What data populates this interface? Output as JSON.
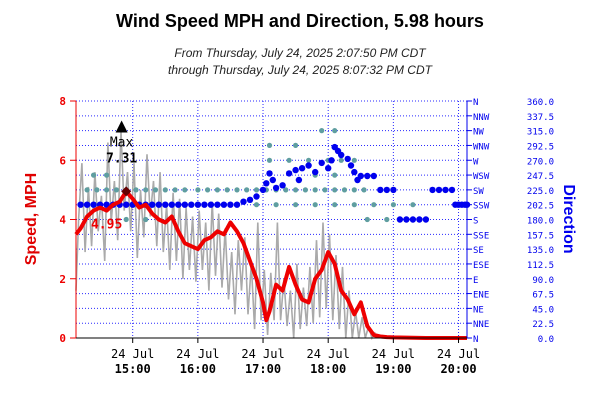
{
  "chart_data": {
    "type": "line",
    "title": "Wind Speed MPH and Direction, 5.98 hours",
    "subtitle_from": "From Thursday, July 24, 2025 2:07:50 PM CDT",
    "subtitle_through": "through Thursday, July 24, 2025 8:07:32 PM CDT",
    "ylabel_left": "Speed, MPH",
    "ylabel_right": "Direction",
    "x_range": [
      14.13,
      20.13
    ],
    "ylim_left": [
      0,
      8
    ],
    "ylim_right": [
      0,
      360
    ],
    "left_ticks": [
      "0",
      "2",
      "4",
      "6",
      "8"
    ],
    "right_ticks": [
      {
        "label": "N",
        "value": "0.0"
      },
      {
        "label": "NNE",
        "value": "22.5"
      },
      {
        "label": "NE",
        "value": "45.0"
      },
      {
        "label": "ENE",
        "value": "67.5"
      },
      {
        "label": "E",
        "value": "90.0"
      },
      {
        "label": "ESE",
        "value": "112.5"
      },
      {
        "label": "SE",
        "value": "135.0"
      },
      {
        "label": "SSE",
        "value": "157.5"
      },
      {
        "label": "S",
        "value": "180.0"
      },
      {
        "label": "SSW",
        "value": "202.5"
      },
      {
        "label": "SW",
        "value": "225.0"
      },
      {
        "label": "WSW",
        "value": "247.5"
      },
      {
        "label": "W",
        "value": "270.0"
      },
      {
        "label": "WNW",
        "value": "292.5"
      },
      {
        "label": "NW",
        "value": "315.0"
      },
      {
        "label": "NNW",
        "value": "337.5"
      },
      {
        "label": "N",
        "value": "360.0"
      }
    ],
    "x_ticks": [
      {
        "date": "24 Jul",
        "time": "15:00"
      },
      {
        "date": "24 Jul",
        "time": "16:00"
      },
      {
        "date": "24 Jul",
        "time": "17:00"
      },
      {
        "date": "24 Jul",
        "time": "18:00"
      },
      {
        "date": "24 Jul",
        "time": "19:00"
      },
      {
        "date": "24 Jul",
        "time": "20:00"
      }
    ],
    "x_tick_hours": [
      15,
      16,
      17,
      18,
      19,
      20
    ],
    "max_label": "Max",
    "max_value": "7.31",
    "max_hour": 14.83,
    "last_value_label": "4.95",
    "series": [
      {
        "color": "#ee0000",
        "x": [
          14.13,
          14.2,
          14.3,
          14.4,
          14.5,
          14.6,
          14.7,
          14.8,
          14.9,
          15.0,
          15.1,
          15.2,
          15.3,
          15.4,
          15.5,
          15.6,
          15.7,
          15.8,
          15.9,
          16.0,
          16.1,
          16.2,
          16.3,
          16.4,
          16.5,
          16.6,
          16.7,
          16.8,
          16.9,
          17.0,
          17.05,
          17.1,
          17.2,
          17.3,
          17.4,
          17.5,
          17.6,
          17.7,
          17.8,
          17.9,
          18.0,
          18.1,
          18.2,
          18.3,
          18.4,
          18.5,
          18.6,
          18.7,
          18.8,
          18.9,
          19.0,
          19.5,
          20.13
        ],
        "y": [
          3.5,
          3.7,
          4.1,
          4.3,
          4.4,
          4.3,
          4.5,
          4.6,
          4.95,
          4.7,
          4.4,
          4.5,
          4.2,
          4.0,
          3.9,
          4.1,
          3.6,
          3.2,
          3.1,
          3.0,
          3.3,
          3.4,
          3.6,
          3.5,
          3.9,
          3.6,
          3.2,
          2.6,
          2.0,
          1.2,
          0.6,
          0.9,
          1.8,
          1.6,
          2.4,
          1.8,
          1.3,
          1.2,
          2.0,
          2.3,
          2.9,
          2.5,
          1.6,
          1.3,
          0.8,
          1.2,
          0.4,
          0.1,
          0.05,
          0.03,
          0.02,
          0.0,
          0.0
        ]
      },
      {
        "color": "#aaaaaa",
        "x": [
          14.13,
          14.17,
          14.22,
          14.27,
          14.32,
          14.37,
          14.42,
          14.47,
          14.52,
          14.57,
          14.62,
          14.67,
          14.72,
          14.77,
          14.82,
          14.87,
          14.92,
          14.97,
          15.02,
          15.07,
          15.12,
          15.17,
          15.22,
          15.27,
          15.32,
          15.37,
          15.42,
          15.47,
          15.52,
          15.57,
          15.62,
          15.67,
          15.72,
          15.77,
          15.82,
          15.87,
          15.92,
          15.97,
          16.02,
          16.07,
          16.12,
          16.17,
          16.22,
          16.27,
          16.32,
          16.37,
          16.42,
          16.47,
          16.52,
          16.57,
          16.62,
          16.67,
          16.72,
          16.77,
          16.82,
          16.87,
          16.92,
          16.97,
          17.02,
          17.07,
          17.12,
          17.17,
          17.22,
          17.27,
          17.32,
          17.37,
          17.42,
          17.47,
          17.52,
          17.57,
          17.62,
          17.67,
          17.72,
          17.77,
          17.82,
          17.87,
          17.92,
          17.97,
          18.02,
          18.07,
          18.12,
          18.17,
          18.22,
          18.27,
          18.32,
          18.37,
          18.42,
          18.47,
          18.52,
          18.57,
          18.62,
          18.67,
          18.72
        ],
        "y": [
          1.6,
          4.0,
          5.9,
          2.9,
          5.1,
          3.1,
          5.6,
          3.6,
          4.8,
          2.6,
          6.6,
          3.9,
          5.3,
          3.3,
          7.0,
          4.3,
          5.6,
          3.6,
          5.9,
          2.7,
          5.0,
          3.4,
          6.2,
          4.1,
          5.3,
          3.1,
          5.6,
          2.9,
          4.5,
          2.3,
          4.9,
          2.6,
          4.7,
          2.0,
          4.4,
          2.3,
          4.1,
          1.9,
          4.3,
          2.3,
          3.9,
          1.6,
          4.6,
          2.1,
          4.2,
          1.7,
          3.7,
          1.3,
          2.9,
          0.8,
          3.3,
          1.6,
          3.4,
          0.8,
          2.5,
          0.3,
          3.9,
          0.6,
          2.3,
          0.1,
          2.2,
          0.6,
          3.9,
          0.6,
          2.0,
          0.4,
          1.6,
          0.0,
          2.5,
          0.3,
          1.7,
          0.4,
          2.4,
          0.5,
          3.3,
          0.7,
          3.9,
          1.0,
          3.5,
          0.6,
          2.8,
          0.3,
          2.4,
          0.0,
          1.6,
          0.0,
          0.9,
          0.0,
          0.7,
          0.0,
          0.4,
          0.0,
          0.2
        ]
      }
    ],
    "direction_points": [
      [
        14.2,
        202.5
      ],
      [
        14.3,
        202.5
      ],
      [
        14.4,
        202.5
      ],
      [
        14.5,
        202.5
      ],
      [
        14.6,
        202.5
      ],
      [
        14.7,
        202.5
      ],
      [
        14.8,
        202.5
      ],
      [
        14.9,
        202.5
      ],
      [
        15.0,
        202.5
      ],
      [
        15.1,
        202.5
      ],
      [
        15.2,
        202.5
      ],
      [
        15.3,
        202.5
      ],
      [
        15.4,
        202.5
      ],
      [
        15.5,
        202.5
      ],
      [
        15.6,
        202.5
      ],
      [
        15.7,
        202.5
      ],
      [
        15.8,
        202.5
      ],
      [
        15.9,
        202.5
      ],
      [
        16.0,
        202.5
      ],
      [
        16.1,
        202.5
      ],
      [
        16.2,
        202.5
      ],
      [
        16.3,
        202.5
      ],
      [
        16.4,
        202.5
      ],
      [
        16.5,
        202.5
      ],
      [
        16.6,
        202.5
      ],
      [
        16.7,
        207
      ],
      [
        16.8,
        210
      ],
      [
        16.9,
        215
      ],
      [
        17.0,
        225
      ],
      [
        17.05,
        235
      ],
      [
        17.1,
        250
      ],
      [
        17.15,
        240
      ],
      [
        17.2,
        228
      ],
      [
        17.3,
        232
      ],
      [
        17.4,
        250
      ],
      [
        17.5,
        255
      ],
      [
        17.55,
        240
      ],
      [
        17.6,
        258
      ],
      [
        17.7,
        262
      ],
      [
        17.8,
        252
      ],
      [
        17.9,
        266
      ],
      [
        18.0,
        258
      ],
      [
        18.05,
        270
      ],
      [
        18.1,
        290
      ],
      [
        18.15,
        284
      ],
      [
        18.2,
        278
      ],
      [
        18.3,
        272
      ],
      [
        18.35,
        262
      ],
      [
        18.4,
        252
      ],
      [
        18.45,
        240
      ],
      [
        18.5,
        246
      ],
      [
        18.6,
        246
      ],
      [
        18.7,
        246
      ],
      [
        18.8,
        225
      ],
      [
        18.9,
        225
      ],
      [
        19.0,
        225
      ],
      [
        19.1,
        180
      ],
      [
        19.2,
        180
      ],
      [
        19.3,
        180
      ],
      [
        19.4,
        180
      ],
      [
        19.5,
        180
      ],
      [
        19.6,
        225
      ],
      [
        19.7,
        225
      ],
      [
        19.8,
        225
      ],
      [
        19.9,
        225
      ],
      [
        19.95,
        202.5
      ],
      [
        20.0,
        202.5
      ],
      [
        20.05,
        202.5
      ],
      [
        20.1,
        202.5
      ],
      [
        20.13,
        202.5
      ]
    ],
    "direction_gust_points": [
      [
        14.3,
        225
      ],
      [
        14.45,
        225
      ],
      [
        14.6,
        225
      ],
      [
        14.75,
        225
      ],
      [
        14.9,
        225
      ],
      [
        15.05,
        225
      ],
      [
        15.2,
        225
      ],
      [
        15.35,
        225
      ],
      [
        15.5,
        225
      ],
      [
        15.65,
        225
      ],
      [
        15.8,
        225
      ],
      [
        16.0,
        225
      ],
      [
        16.15,
        225
      ],
      [
        16.3,
        225
      ],
      [
        16.45,
        225
      ],
      [
        16.6,
        225
      ],
      [
        16.75,
        225
      ],
      [
        16.9,
        225
      ],
      [
        17.05,
        225
      ],
      [
        17.2,
        225
      ],
      [
        17.35,
        225
      ],
      [
        17.5,
        225
      ],
      [
        17.65,
        225
      ],
      [
        17.8,
        225
      ],
      [
        17.95,
        225
      ],
      [
        18.1,
        225
      ],
      [
        18.25,
        225
      ],
      [
        18.4,
        225
      ],
      [
        18.55,
        225
      ],
      [
        16.0,
        202.5
      ],
      [
        16.3,
        202.5
      ],
      [
        16.6,
        202.5
      ],
      [
        16.9,
        202.5
      ],
      [
        17.2,
        202.5
      ],
      [
        17.5,
        202.5
      ],
      [
        17.8,
        202.5
      ],
      [
        18.1,
        202.5
      ],
      [
        18.4,
        202.5
      ],
      [
        18.7,
        202.5
      ],
      [
        19.0,
        202.5
      ],
      [
        19.3,
        202.5
      ],
      [
        17.1,
        270
      ],
      [
        17.4,
        270
      ],
      [
        17.7,
        270
      ],
      [
        18.0,
        270
      ],
      [
        18.2,
        270
      ],
      [
        18.4,
        270
      ],
      [
        17.8,
        247.5
      ],
      [
        18.1,
        247.5
      ],
      [
        17.1,
        292.5
      ],
      [
        17.5,
        292.5
      ],
      [
        17.9,
        315
      ],
      [
        18.1,
        315
      ],
      [
        14.9,
        180
      ],
      [
        15.2,
        180
      ],
      [
        18.6,
        180
      ],
      [
        18.9,
        180
      ],
      [
        14.4,
        247.5
      ],
      [
        14.6,
        247.5
      ]
    ]
  }
}
